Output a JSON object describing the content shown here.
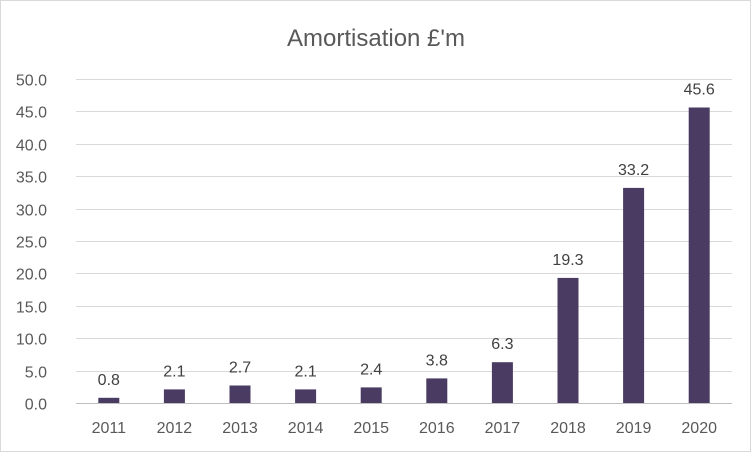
{
  "chart_data": {
    "type": "bar",
    "title": "Amortisation £'m",
    "xlabel": "",
    "ylabel": "",
    "categories": [
      "2011",
      "2012",
      "2013",
      "2014",
      "2015",
      "2016",
      "2017",
      "2018",
      "2019",
      "2020"
    ],
    "values": [
      0.8,
      2.1,
      2.7,
      2.1,
      2.4,
      3.8,
      6.3,
      19.3,
      33.2,
      45.6
    ],
    "data_labels": [
      "0.8",
      "2.1",
      "2.7",
      "2.1",
      "2.4",
      "3.8",
      "6.3",
      "19.3",
      "33.2",
      "45.6"
    ],
    "ylim": [
      0,
      50
    ],
    "yticks": [
      "0.0",
      "5.0",
      "10.0",
      "15.0",
      "20.0",
      "25.0",
      "30.0",
      "35.0",
      "40.0",
      "45.0",
      "50.0"
    ],
    "grid": true,
    "legend": "none",
    "bar_color": "#4a3b63"
  }
}
